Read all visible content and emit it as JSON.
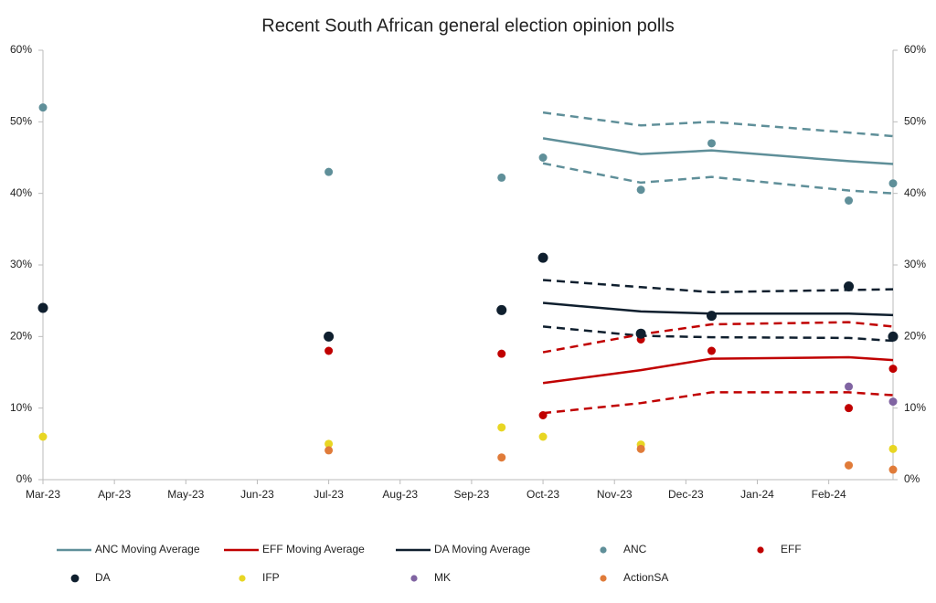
{
  "chart_data": {
    "type": "scatter",
    "title": "Recent South African general election opinion polls",
    "xlim": [
      0,
      11.9
    ],
    "xticks": [
      {
        "value": 0,
        "label": "Mar-23"
      },
      {
        "value": 1,
        "label": "Apr-23"
      },
      {
        "value": 2,
        "label": "May-23"
      },
      {
        "value": 3,
        "label": "Jun-23"
      },
      {
        "value": 4,
        "label": "Jul-23"
      },
      {
        "value": 5,
        "label": "Aug-23"
      },
      {
        "value": 6,
        "label": "Sep-23"
      },
      {
        "value": 7,
        "label": "Oct-23"
      },
      {
        "value": 8,
        "label": "Nov-23"
      },
      {
        "value": 9,
        "label": "Dec-23"
      },
      {
        "value": 10,
        "label": "Jan-24"
      },
      {
        "value": 11,
        "label": "Feb-24"
      }
    ],
    "ylim": [
      0,
      60
    ],
    "yticks": [
      {
        "value": 0,
        "label": "0%"
      },
      {
        "value": 10,
        "label": "10%"
      },
      {
        "value": 20,
        "label": "20%"
      },
      {
        "value": 30,
        "label": "30%"
      },
      {
        "value": 40,
        "label": "40%"
      },
      {
        "value": 50,
        "label": "50%"
      },
      {
        "value": 60,
        "label": "60%"
      }
    ],
    "y2lim": [
      0,
      60
    ],
    "y2ticks": [
      {
        "value": 0,
        "label": "0%"
      },
      {
        "value": 10,
        "label": "10%"
      },
      {
        "value": 20,
        "label": "20%"
      },
      {
        "value": 30,
        "label": "30%"
      },
      {
        "value": 40,
        "label": "40%"
      },
      {
        "value": 50,
        "label": "50%"
      },
      {
        "value": 60,
        "label": "60%"
      }
    ],
    "grid": false,
    "legend": "bottom",
    "series": [
      {
        "name": "ANC Moving Average",
        "mode": "line",
        "color": "#5f8f99",
        "x": [
          7,
          8.37,
          9.36,
          11.28,
          11.9
        ],
        "values": [
          47.7,
          45.5,
          46,
          44.5,
          44.1
        ]
      },
      {
        "name": "EFF Moving Average",
        "mode": "line",
        "color": "#c00000",
        "x": [
          7,
          8.37,
          9.36,
          11.28,
          11.9
        ],
        "values": [
          13.5,
          15.3,
          16.9,
          17.1,
          16.7
        ]
      },
      {
        "name": "DA Moving Average",
        "mode": "line",
        "color": "#0f1f2e",
        "x": [
          7,
          8.37,
          9.36,
          11.28,
          11.9
        ],
        "values": [
          24.7,
          23.5,
          23.2,
          23.2,
          23
        ]
      },
      {
        "name": "ANC",
        "mode": "markers",
        "marker_size": 4.5,
        "color": "#5f8f99",
        "x": [
          0,
          4,
          6.42,
          7,
          8.37,
          9.36,
          11.28,
          11.9
        ],
        "values": [
          52,
          43,
          42.2,
          45,
          40.5,
          47,
          39,
          41.4
        ]
      },
      {
        "name": "EFF",
        "mode": "markers",
        "marker_size": 4.5,
        "color": "#c00000",
        "x": [
          4,
          6.42,
          7,
          8.37,
          9.36,
          11.28,
          11.9
        ],
        "values": [
          18,
          17.6,
          9,
          19.6,
          18,
          10,
          15.5
        ]
      },
      {
        "name": "DA",
        "mode": "markers",
        "marker_size": 5.5,
        "color": "#0f1f2e",
        "x": [
          0,
          4,
          6.42,
          7,
          8.37,
          9.36,
          11.28,
          11.9
        ],
        "values": [
          24,
          20,
          23.7,
          31,
          20.4,
          22.9,
          27,
          20
        ]
      },
      {
        "name": "IFP",
        "mode": "markers",
        "marker_size": 4.5,
        "color": "#e8d623",
        "x": [
          0,
          4,
          6.42,
          7,
          8.37,
          11.9
        ],
        "values": [
          6,
          5,
          7.3,
          6,
          4.9,
          4.3
        ]
      },
      {
        "name": "MK",
        "mode": "markers",
        "marker_size": 4.5,
        "color": "#8064a2",
        "x": [
          11.28,
          11.9
        ],
        "values": [
          13,
          10.9
        ]
      },
      {
        "name": "ActionSA",
        "mode": "markers",
        "marker_size": 4.5,
        "color": "#e07b39",
        "x": [
          4,
          6.42,
          8.37,
          11.28,
          11.9
        ],
        "values": [
          4.1,
          3.1,
          4.3,
          2,
          1.4
        ]
      },
      {
        "mode": "dashed",
        "color": "#5f8f99",
        "x": [
          7,
          8.37,
          9.36,
          11.28,
          11.9
        ],
        "values": [
          51.3,
          49.5,
          50,
          48.5,
          48
        ]
      },
      {
        "mode": "dashed",
        "color": "#5f8f99",
        "x": [
          7,
          8.37,
          9.36,
          11.28,
          11.9
        ],
        "values": [
          44.2,
          41.5,
          42.3,
          40.4,
          40
        ]
      },
      {
        "mode": "dashed",
        "color": "#0f1f2e",
        "x": [
          7,
          8.37,
          9.36,
          11.28,
          11.9
        ],
        "values": [
          27.9,
          26.9,
          26.2,
          26.5,
          26.6
        ]
      },
      {
        "mode": "dashed",
        "color": "#0f1f2e",
        "x": [
          7,
          8.37,
          9.36,
          11.28,
          11.9
        ],
        "values": [
          21.4,
          20.1,
          19.9,
          19.8,
          19.4
        ]
      },
      {
        "mode": "dashed",
        "color": "#c00000",
        "x": [
          7,
          8.37,
          9.36,
          11.28,
          11.9
        ],
        "values": [
          17.8,
          20.3,
          21.7,
          22,
          21.4
        ]
      },
      {
        "mode": "dashed",
        "color": "#c00000",
        "x": [
          7,
          8.37,
          9.36,
          11.28,
          11.9
        ],
        "values": [
          9.3,
          10.7,
          12.2,
          12.2,
          11.8
        ]
      }
    ]
  }
}
